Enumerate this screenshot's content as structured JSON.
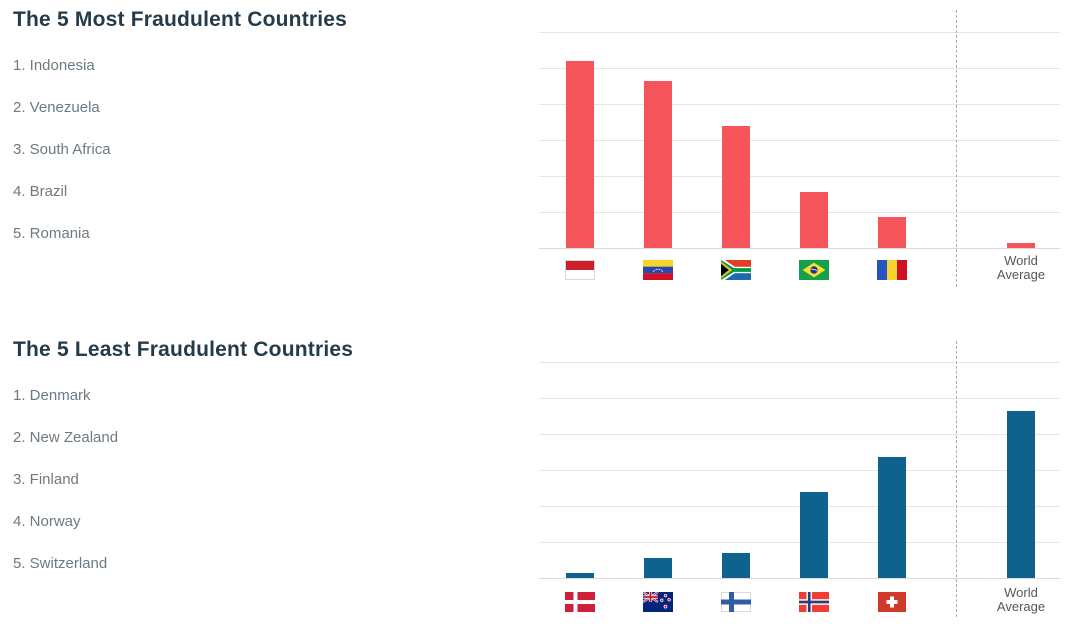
{
  "sections": [
    {
      "title": "The 5 Most Fraudulent Countries",
      "items": [
        "1. Indonesia",
        "2. Venezuela",
        "3. South Africa",
        "4. Brazil",
        "5. Romania"
      ]
    },
    {
      "title": "The 5 Least Fraudulent Countries",
      "items": [
        "1. Denmark",
        "2. New Zealand",
        "3. Finland",
        "4. Norway",
        "5. Switzerland"
      ]
    }
  ],
  "chart_data": [
    {
      "type": "bar",
      "title": "The 5 Most Fraudulent Countries",
      "categories": [
        "Indonesia",
        "Venezuela",
        "South Africa",
        "Brazil",
        "Romania",
        "World Average"
      ],
      "values": [
        5.2,
        4.65,
        3.4,
        1.55,
        0.85,
        0.15
      ],
      "value_unit": "gridline steps (y-axis unlabeled, no tick labels shown)",
      "xlabel": "",
      "ylabel": "",
      "ylim": [
        0,
        6.6
      ],
      "grid": true,
      "gridline_count": 6,
      "legend_position": "none",
      "bar_color": "#f5545b",
      "x_tick_icons": [
        "indonesia-flag",
        "venezuela-flag",
        "south-africa-flag",
        "brazil-flag",
        "romania-flag"
      ],
      "world_average_label": "World Average",
      "separator_note": "vertical dashed line isolates the World Average column"
    },
    {
      "type": "bar",
      "title": "The 5 Least Fraudulent Countries",
      "categories": [
        "Denmark",
        "New Zealand",
        "Finland",
        "Norway",
        "Switzerland",
        "World Average"
      ],
      "values": [
        0.15,
        0.55,
        0.7,
        2.4,
        3.35,
        4.65
      ],
      "value_unit": "gridline steps (y-axis unlabeled, no tick labels shown)",
      "xlabel": "",
      "ylabel": "",
      "ylim": [
        0,
        6.6
      ],
      "grid": true,
      "gridline_count": 6,
      "legend_position": "none",
      "bar_color": "#0f628e",
      "x_tick_icons": [
        "denmark-flag",
        "new-zealand-flag",
        "finland-flag",
        "norway-flag",
        "switzerland-flag"
      ],
      "world_average_label": "World Average",
      "separator_note": "vertical dashed line isolates the World Average column"
    }
  ],
  "colors": {
    "most_fraudulent_bar": "#f5545b",
    "least_fraudulent_bar": "#0f628e",
    "gridline": "#e6e6e6",
    "dashed_separator": "#a7abad",
    "title_text": "#243b4a",
    "list_text": "#6d7a83",
    "axis_label_text": "#54585b"
  }
}
